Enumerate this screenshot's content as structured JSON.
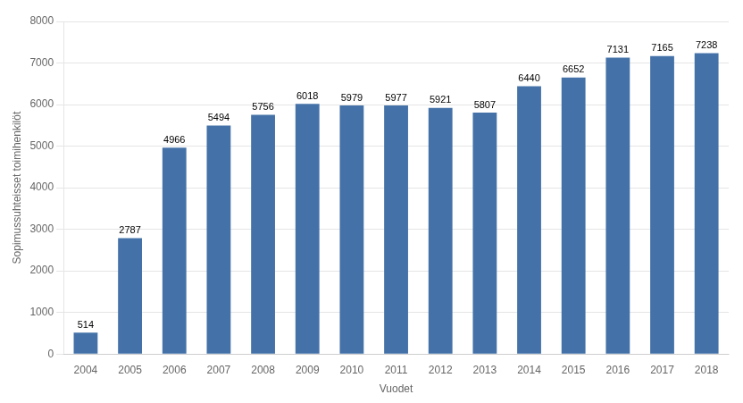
{
  "chart_data": {
    "type": "bar",
    "categories": [
      "2004",
      "2005",
      "2006",
      "2007",
      "2008",
      "2009",
      "2010",
      "2011",
      "2012",
      "2013",
      "2014",
      "2015",
      "2016",
      "2017",
      "2018"
    ],
    "values": [
      514,
      2787,
      4966,
      5494,
      5756,
      6018,
      5979,
      5977,
      5921,
      5807,
      6440,
      6652,
      7131,
      7165,
      7238
    ],
    "color": "#4472a8",
    "xlabel": "Vuodet",
    "ylabel": "Sopimussuhteisset toimihenkilöt",
    "ylim": [
      0,
      8000
    ],
    "yticks": [
      0,
      1000,
      2000,
      3000,
      4000,
      5000,
      6000,
      7000,
      8000
    ],
    "grid": true,
    "data_labels": true
  }
}
